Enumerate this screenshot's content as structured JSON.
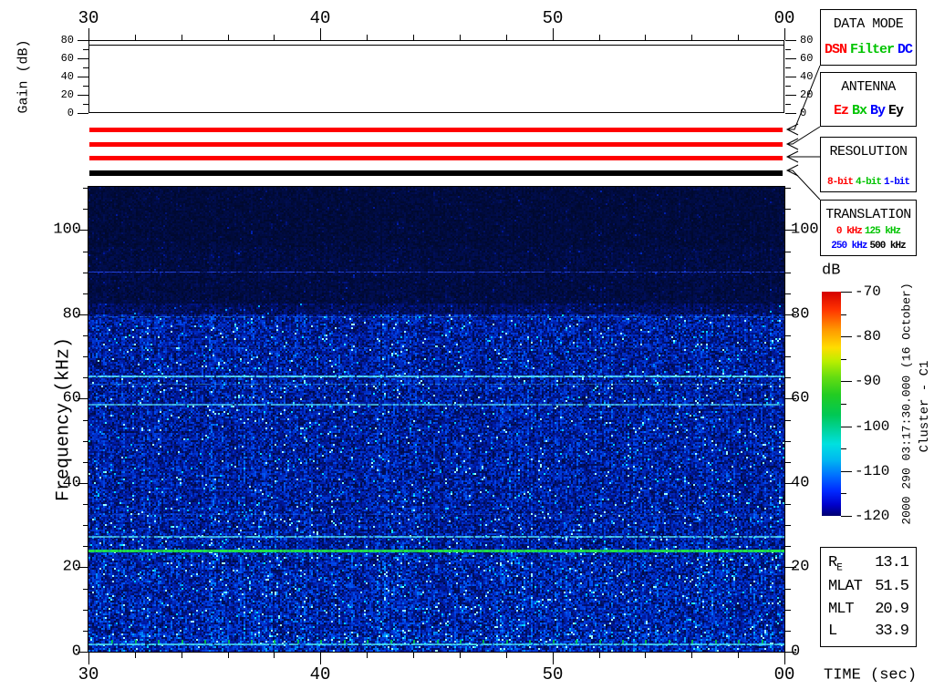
{
  "time_axis": {
    "title": "TIME (sec)",
    "major_labels": [
      "30",
      "40",
      "50",
      "00"
    ],
    "major_values": [
      0,
      10,
      20,
      30
    ],
    "span_sec": 30,
    "minor_step_sec": 2
  },
  "gain_plot": {
    "ylabel": "Gain (dB)",
    "major_labels": [
      "0",
      "20",
      "40",
      "60",
      "80"
    ],
    "major_values": [
      0,
      20,
      40,
      60,
      80
    ],
    "minor_step": 10,
    "range": [
      0,
      80
    ],
    "trace_value_db": 75
  },
  "spectrogram_axis": {
    "ylabel": "Frequency (kHz)",
    "major_labels": [
      "0",
      "20",
      "40",
      "60",
      "80",
      "100"
    ],
    "major_values": [
      0,
      20,
      40,
      60,
      80,
      100
    ],
    "minor_step": 5,
    "fmax_khz": 110.25
  },
  "mode_bars": [
    {
      "name": "data-mode-bar",
      "color": "#ff0000",
      "meaning": "DSN"
    },
    {
      "name": "antenna-bar",
      "color": "#ff0000",
      "meaning": "Ez"
    },
    {
      "name": "resolution-bar",
      "color": "#ff0000",
      "meaning": "8-bit"
    },
    {
      "name": "translation-bar",
      "color": "#000000",
      "meaning": "500 kHz"
    }
  ],
  "panels": [
    {
      "title": "DATA MODE",
      "small": false,
      "rows": [
        [
          {
            "label": "DSN",
            "color": "#ff0000"
          },
          {
            "label": "Filter",
            "color": "#00c400"
          },
          {
            "label": "DC",
            "color": "#0000ff"
          }
        ]
      ]
    },
    {
      "title": "ANTENNA",
      "small": false,
      "rows": [
        [
          {
            "label": "Ez",
            "color": "#ff0000"
          },
          {
            "label": "Bx",
            "color": "#00c400"
          },
          {
            "label": "By",
            "color": "#0000ff"
          },
          {
            "label": "Ey",
            "color": "#000000"
          }
        ]
      ]
    },
    {
      "title": "RESOLUTION",
      "small": true,
      "rows": [
        [
          {
            "label": "8-bit",
            "color": "#ff0000"
          },
          {
            "label": "4-bit",
            "color": "#00c400"
          },
          {
            "label": "1-bit",
            "color": "#0000ff"
          }
        ]
      ]
    },
    {
      "title": "TRANSLATION",
      "small": true,
      "rows": [
        [
          {
            "label": "0 kHz",
            "color": "#ff0000"
          },
          {
            "label": "125 kHz",
            "color": "#00c400"
          }
        ],
        [
          {
            "label": "250 kHz",
            "color": "#0000ff"
          },
          {
            "label": "500 kHz",
            "color": "#000000"
          }
        ]
      ]
    }
  ],
  "colorbar": {
    "label": "dB",
    "major_labels": [
      "-70",
      "-80",
      "-90",
      "-100",
      "-110",
      "-120"
    ],
    "major_values": [
      -70,
      -80,
      -90,
      -100,
      -110,
      -120
    ],
    "minor_step": 5,
    "range": [
      -70,
      -120
    ],
    "gradient": [
      "#d40000 0%",
      "#ff3300 8%",
      "#ff9900 17%",
      "#ffdd00 25%",
      "#bbee00 31%",
      "#66dd11 38%",
      "#22cc22 46%",
      "#00c855 55%",
      "#00d4a0 62%",
      "#00e0e0 68%",
      "#00b8f0 75%",
      "#0070ff 82%",
      "#0028ff 89%",
      "#0000cc 95%",
      "#000070 100%"
    ]
  },
  "side_text": {
    "datetime": "2000 290 03:17:30.000 (16 October)",
    "spacecraft": "Cluster - C1"
  },
  "info_box": {
    "rows": [
      {
        "label": "R",
        "sub": "E",
        "value": "13.1"
      },
      {
        "label": "MLAT",
        "sub": "",
        "value": "51.5"
      },
      {
        "label": "MLT",
        "sub": "",
        "value": "20.9"
      },
      {
        "label": "L",
        "sub": "",
        "value": "33.9"
      }
    ]
  },
  "chart_data": {
    "type": "heatmap",
    "title": "Cluster - C1 wideband (WBD) frequency-time spectrogram",
    "xlabel": "TIME (sec)",
    "ylabel": "Frequency (kHz)",
    "zlabel": "dB",
    "x_tick_labels": [
      "30",
      "40",
      "50",
      "00"
    ],
    "x_range_sec": [
      30,
      60
    ],
    "y_range_khz": [
      0,
      110.25
    ],
    "z_range_db": [
      -120,
      -70
    ],
    "datetime": "2000 290 03:17:30.000 (16 October)",
    "spacecraft": "Cluster - C1",
    "gain_trace_db": 75,
    "active_modes": {
      "data_mode": "DSN",
      "antenna": "Ez",
      "resolution": "8-bit",
      "translation": "500 kHz"
    },
    "noise_bands": [
      {
        "f_range_khz": [
          96,
          110.25
        ],
        "level": 0.05,
        "approx_db": -119
      },
      {
        "f_range_khz": [
          83,
          96
        ],
        "level": 0.065,
        "approx_db": -118
      },
      {
        "f_range_khz": [
          80,
          83
        ],
        "level": 0.13,
        "approx_db": -116
      },
      {
        "f_range_khz": [
          24,
          80
        ],
        "level": 0.3,
        "approx_db": -113
      },
      {
        "f_range_khz": [
          5,
          24
        ],
        "level": 0.33,
        "approx_db": -112
      },
      {
        "f_range_khz": [
          0,
          5
        ],
        "level": 0.36,
        "approx_db": -111
      }
    ],
    "spectral_lines": [
      {
        "f_khz": 90.0,
        "color": "#2b50ff",
        "alpha": 0.8,
        "thickness": 1,
        "gap": 0.3,
        "approx_db": -112
      },
      {
        "f_khz": 79.5,
        "color": "#38b8ff",
        "alpha": 0.45,
        "thickness": 1,
        "gap": 0.55,
        "approx_db": -111
      },
      {
        "f_khz": 72.0,
        "color": "#2f80ff",
        "alpha": 0.3,
        "thickness": 1,
        "gap": 0.6,
        "approx_db": -112
      },
      {
        "f_khz": 65.3,
        "color": "#55e0f5",
        "alpha": 0.95,
        "thickness": 2,
        "gap": 0.06,
        "approx_db": -106
      },
      {
        "f_khz": 63.5,
        "color": "#45c0f0",
        "alpha": 0.5,
        "thickness": 1,
        "gap": 0.5,
        "approx_db": -109
      },
      {
        "f_khz": 58.5,
        "color": "#4cd0f0",
        "alpha": 0.8,
        "thickness": 2,
        "gap": 0.18,
        "approx_db": -107
      },
      {
        "f_khz": 32.5,
        "color": "#3890ff",
        "alpha": 0.35,
        "thickness": 1,
        "gap": 0.55,
        "approx_db": -111
      },
      {
        "f_khz": 27.3,
        "color": "#50dcf0",
        "alpha": 0.85,
        "thickness": 2,
        "gap": 0.15,
        "approx_db": -106
      },
      {
        "f_khz": 23.8,
        "color": "#1ee24a",
        "alpha": 1.0,
        "thickness": 3,
        "gap": 0,
        "approx_db": -95
      },
      {
        "f_khz": 1.7,
        "color": "#46d8ee",
        "alpha": 0.9,
        "thickness": 2,
        "gap": 0.08,
        "approx_db": -105
      }
    ],
    "second_marks": {
      "f_khz": 2.4,
      "color": "#00cc44",
      "step_sec": 1
    },
    "colormap_stops": [
      {
        "v": 0.0,
        "rgb": [
          0,
          8,
          40
        ]
      },
      {
        "v": 0.3,
        "rgb": [
          0,
          24,
          160
        ]
      },
      {
        "v": 0.55,
        "rgb": [
          0,
          70,
          235
        ]
      },
      {
        "v": 0.72,
        "rgb": [
          0,
          150,
          255
        ]
      },
      {
        "v": 0.86,
        "rgb": [
          0,
          225,
          255
        ]
      },
      {
        "v": 1.0,
        "rgb": [
          160,
          255,
          255
        ]
      }
    ]
  }
}
